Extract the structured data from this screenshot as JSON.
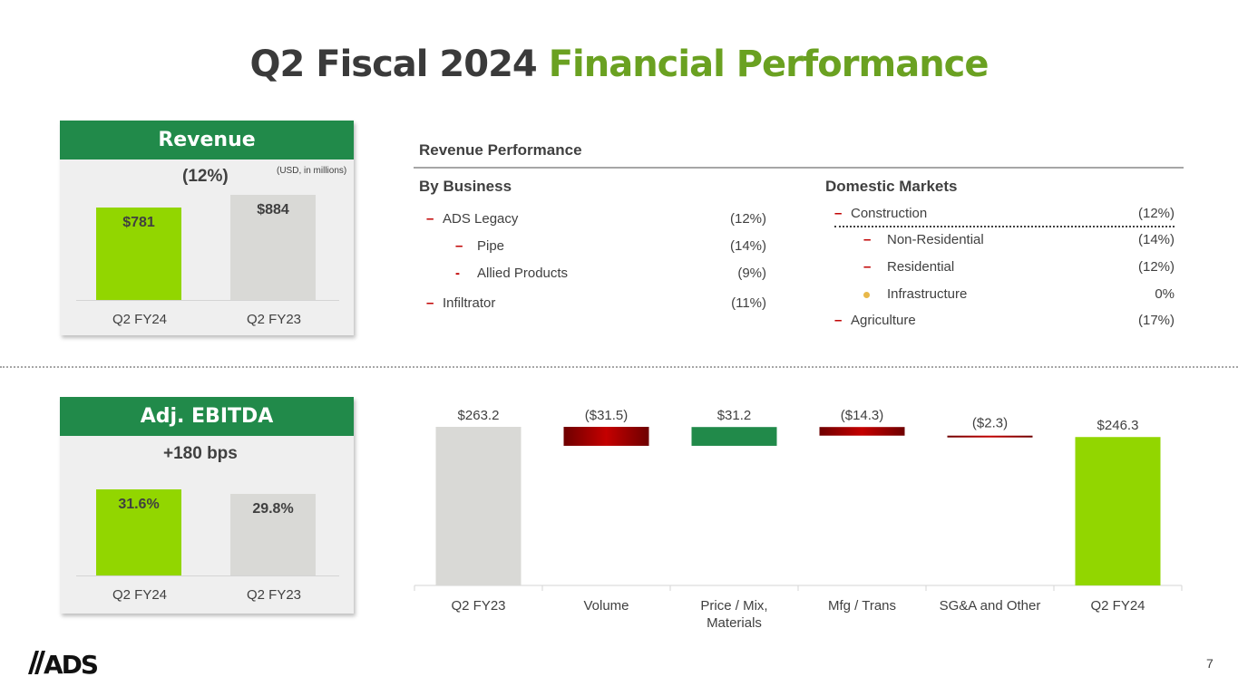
{
  "title": {
    "main": "Q2 Fiscal 2024",
    "accent": "Financial Performance"
  },
  "revenue_panel": {
    "header": "Revenue",
    "change": "(12%)",
    "unit_note": "(USD, in millions)",
    "bars": [
      {
        "category": "Q2 FY24",
        "value": 781,
        "label": "$781",
        "color": "#92d600"
      },
      {
        "category": "Q2 FY23",
        "value": 884,
        "label": "$884",
        "color": "#d9d9d6"
      }
    ]
  },
  "ebitda_panel": {
    "header": "Adj. EBITDA",
    "change": "+180 bps",
    "bars": [
      {
        "category": "Q2 FY24",
        "value": 31.6,
        "label": "31.6%",
        "color": "#92d600"
      },
      {
        "category": "Q2 FY23",
        "value": 29.8,
        "label": "29.8%",
        "color": "#d9d9d6"
      }
    ]
  },
  "revenue_performance": {
    "title": "Revenue Performance",
    "by_business": {
      "heading": "By Business",
      "rows": [
        {
          "marker": "–",
          "label": "ADS Legacy",
          "value": "(12%)"
        },
        {
          "marker": "–",
          "label": "Pipe",
          "value": "(14%)"
        },
        {
          "marker": "-",
          "label": "Allied Products",
          "value": "(9%)"
        },
        {
          "marker": "–",
          "label": "Infiltrator",
          "value": "(11%)"
        }
      ]
    },
    "domestic_markets": {
      "heading": "Domestic Markets",
      "rows": [
        {
          "marker": "–",
          "label": "Construction",
          "value": "(12%)"
        },
        {
          "marker": "–",
          "label": "Non-Residential",
          "value": "(14%)"
        },
        {
          "marker": "–",
          "label": "Residential",
          "value": "(12%)"
        },
        {
          "marker": "●",
          "label": "Infrastructure",
          "value": "0%"
        },
        {
          "marker": "–",
          "label": "Agriculture",
          "value": "(17%)"
        }
      ]
    }
  },
  "chart_data": [
    {
      "type": "bar",
      "title": "Revenue",
      "subtitle": "(12%)",
      "note": "(USD, in millions)",
      "categories": [
        "Q2 FY24",
        "Q2 FY23"
      ],
      "values": [
        781,
        884
      ],
      "data_labels": [
        "$781",
        "$884"
      ]
    },
    {
      "type": "bar",
      "title": "Adj. EBITDA",
      "subtitle": "+180 bps",
      "categories": [
        "Q2 FY24",
        "Q2 FY23"
      ],
      "values": [
        31.6,
        29.8
      ],
      "data_labels": [
        "31.6%",
        "29.8%"
      ]
    },
    {
      "type": "bar",
      "subtype": "waterfall",
      "categories": [
        "Q2 FY23",
        "Volume",
        "Price / Mix, Materials",
        "Mfg / Trans",
        "SG&A and Other",
        "Q2 FY24"
      ],
      "category_lines": [
        [
          "Q2 FY23"
        ],
        [
          "Volume"
        ],
        [
          "Price / Mix,",
          "Materials"
        ],
        [
          "Mfg / Trans"
        ],
        [
          "SG&A and Other"
        ],
        [
          "Q2 FY24"
        ]
      ],
      "values": [
        263.2,
        -31.5,
        31.2,
        -14.3,
        -2.3,
        246.3
      ],
      "kinds": [
        "total",
        "delta",
        "delta",
        "delta",
        "delta",
        "total"
      ],
      "data_labels": [
        "$263.2",
        "($31.5)",
        "$31.2",
        "($14.3)",
        "($2.3)",
        "$246.3"
      ],
      "colors": {
        "start_total": "#d9d9d6",
        "end_total": "#92d600",
        "increase": "#218a4a",
        "decrease": "#b00000"
      }
    }
  ],
  "footer": {
    "logo_text": "ADS",
    "page_number": "7"
  }
}
